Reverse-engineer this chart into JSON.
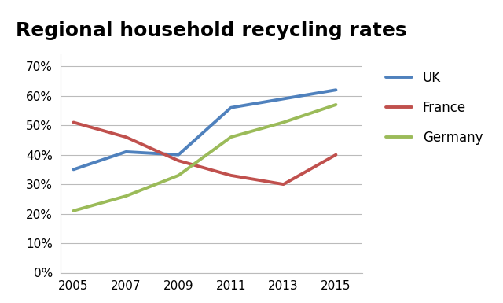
{
  "title": "Regional household recycling rates",
  "years": [
    2005,
    2007,
    2009,
    2011,
    2013,
    2015
  ],
  "series": [
    {
      "label": "UK",
      "values": [
        35,
        41,
        40,
        56,
        59,
        62
      ],
      "color": "#4F81BD"
    },
    {
      "label": "France",
      "values": [
        51,
        46,
        38,
        33,
        30,
        40
      ],
      "color": "#C0504D"
    },
    {
      "label": "Germany",
      "values": [
        21,
        26,
        33,
        46,
        51,
        57
      ],
      "color": "#9BBB59"
    }
  ],
  "ylim": [
    0,
    74
  ],
  "yticks": [
    0,
    10,
    20,
    30,
    40,
    50,
    60,
    70
  ],
  "ytick_labels": [
    "0%",
    "10%",
    "20%",
    "30%",
    "40%",
    "50%",
    "60%",
    "70%"
  ],
  "xticks": [
    2005,
    2007,
    2009,
    2011,
    2013,
    2015
  ],
  "grid_color": "#BBBBBB",
  "title_fontsize": 18,
  "tick_fontsize": 11,
  "legend_fontsize": 12,
  "linewidth": 2.8,
  "background_color": "#FFFFFF"
}
